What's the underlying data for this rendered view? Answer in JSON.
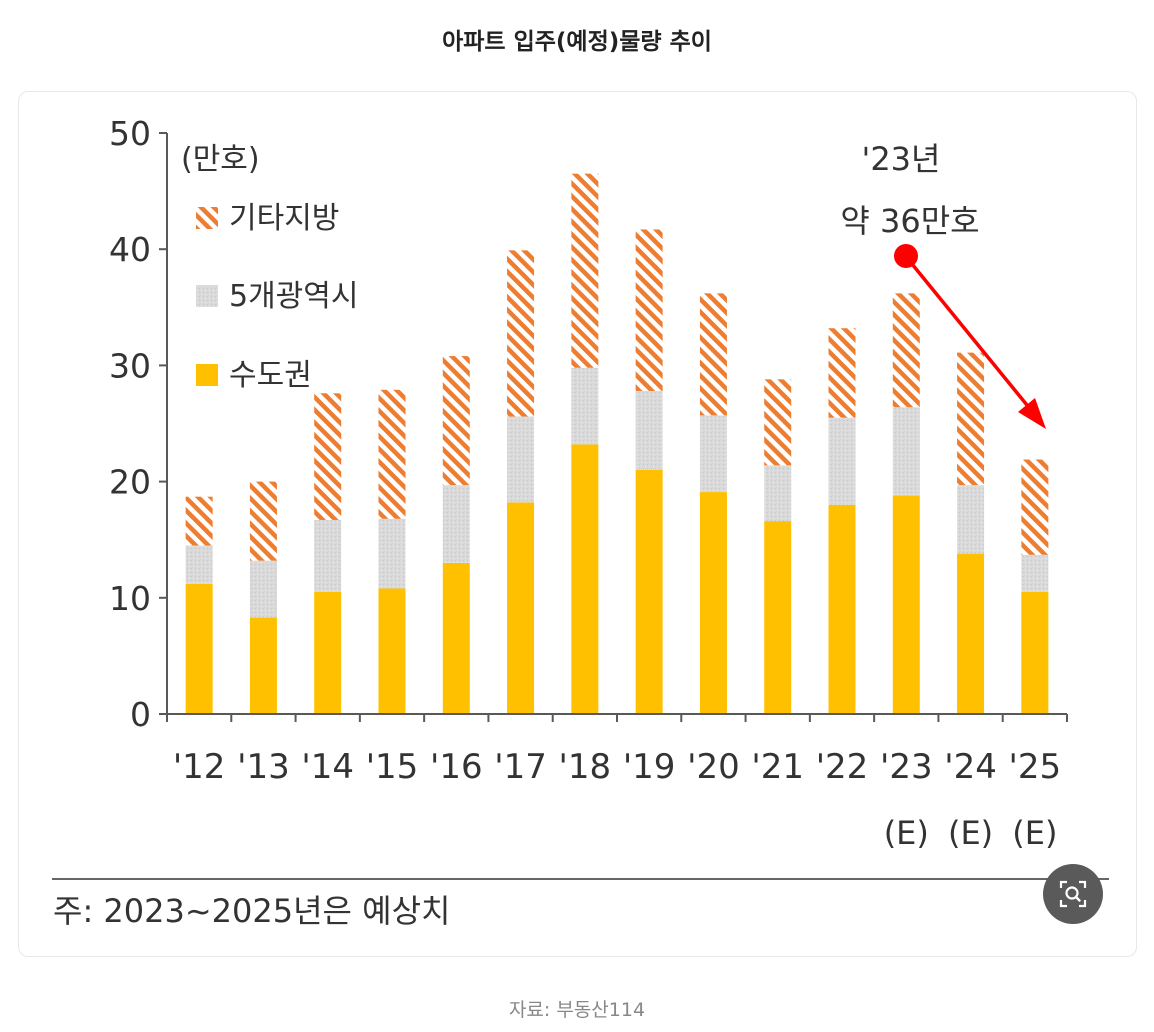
{
  "page": {
    "title": "아파트 입주(예정)물량 추이",
    "footnote": "주: 2023~2025년은 예상치",
    "source": "자료: 부동산114",
    "zoom_icon": "zoom-search-icon"
  },
  "colors": {
    "capital": "#ffc000",
    "metro": "#d9d9d9",
    "other": "#ed7d31",
    "arrow": "#ff0000",
    "axis": "#595959"
  },
  "chart_data": {
    "type": "bar",
    "stacked": true,
    "unit_label": "(만호)",
    "categories": [
      "'12",
      "'13",
      "'14",
      "'15",
      "'16",
      "'17",
      "'18",
      "'19",
      "'20",
      "'21",
      "'22",
      "'23",
      "'24",
      "'25"
    ],
    "estimate_label": "(E)",
    "estimate_categories": [
      "'23",
      "'24",
      "'25"
    ],
    "series": [
      {
        "name": "수도권",
        "values": [
          11.2,
          8.3,
          10.5,
          10.8,
          13.0,
          18.2,
          23.2,
          21.0,
          19.1,
          16.6,
          18.0,
          18.8,
          13.8,
          10.5
        ]
      },
      {
        "name": "5개광역시",
        "values": [
          3.3,
          4.9,
          6.2,
          6.0,
          6.7,
          7.4,
          6.6,
          6.8,
          6.6,
          4.8,
          7.5,
          7.6,
          5.9,
          3.2
        ]
      },
      {
        "name": "기타지방",
        "values": [
          4.2,
          6.8,
          10.9,
          11.1,
          11.1,
          14.3,
          16.7,
          13.9,
          10.5,
          7.4,
          7.7,
          9.8,
          11.4,
          8.2
        ]
      }
    ],
    "legend_order": [
      "기타지방",
      "5개광역시",
      "수도권"
    ],
    "yticks": [
      0,
      10,
      20,
      30,
      40,
      50
    ],
    "ylim": [
      0,
      50
    ],
    "annotation": {
      "line1": "'23년",
      "line2": "약 36만호"
    }
  }
}
